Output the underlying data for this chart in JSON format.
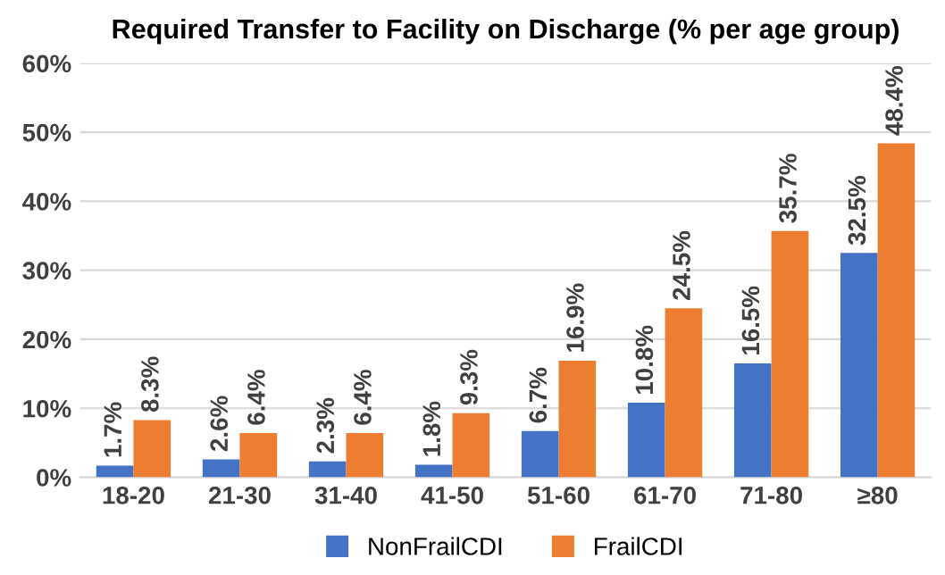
{
  "chart_data": {
    "type": "bar",
    "title": "Required Transfer to Facility on Discharge (% per age group)",
    "categories": [
      "18-20",
      "21-30",
      "31-40",
      "41-50",
      "51-60",
      "61-70",
      "71-80",
      "≥80"
    ],
    "series": [
      {
        "name": "NonFrailCDI",
        "color": "#4472c4",
        "values": [
          1.7,
          2.6,
          2.3,
          1.8,
          6.7,
          10.8,
          16.5,
          32.5
        ],
        "value_labels": [
          "1.7%",
          "2.6%",
          "2.3%",
          "1.8%",
          "6.7%",
          "10.8%",
          "16.5%",
          "32.5%"
        ]
      },
      {
        "name": "FrailCDI",
        "color": "#ed7d31",
        "values": [
          8.3,
          6.4,
          6.4,
          9.3,
          16.9,
          24.5,
          35.7,
          48.4
        ],
        "value_labels": [
          "8.3%",
          "6.4%",
          "6.4%",
          "9.3%",
          "16.9%",
          "24.5%",
          "35.7%",
          "48.4%"
        ]
      }
    ],
    "ylim": [
      0,
      60
    ],
    "yticks": [
      {
        "value": 0,
        "label": "0%"
      },
      {
        "value": 10,
        "label": "10%"
      },
      {
        "value": 20,
        "label": "20%"
      },
      {
        "value": 30,
        "label": "30%"
      },
      {
        "value": 40,
        "label": "40%"
      },
      {
        "value": 50,
        "label": "50%"
      },
      {
        "value": 60,
        "label": "60%"
      }
    ],
    "grid": "y",
    "legend": "bottom"
  }
}
